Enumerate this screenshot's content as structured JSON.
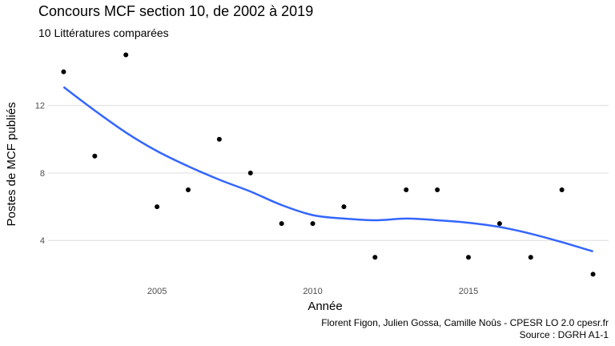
{
  "chart_data": {
    "type": "scatter",
    "title": "Concours MCF section 10, de 2002 à 2019",
    "subtitle": "10 Littératures comparées",
    "xlabel": "Année",
    "ylabel": "Postes de MCF publiés",
    "x_ticks": [
      2005,
      2010,
      2015
    ],
    "y_ticks": [
      4,
      8,
      12
    ],
    "xlim": [
      2001.5,
      2019.5
    ],
    "ylim": [
      1.4,
      15.5
    ],
    "grid": "horizontal major",
    "legend": "none",
    "series": [
      {
        "type": "scatter",
        "color": "#000000",
        "x": [
          2002,
          2003,
          2004,
          2005,
          2006,
          2007,
          2008,
          2009,
          2010,
          2011,
          2012,
          2013,
          2014,
          2015,
          2016,
          2017,
          2018,
          2019
        ],
        "y": [
          14,
          9,
          15,
          6,
          7,
          10,
          8,
          5,
          5,
          6,
          3,
          7,
          7,
          3,
          5,
          3,
          7,
          2
        ]
      },
      {
        "type": "line",
        "smooth": true,
        "color": "#3366ff",
        "x": [
          2002,
          2003,
          2004,
          2005,
          2006,
          2007,
          2008,
          2009,
          2010,
          2011,
          2012,
          2013,
          2014,
          2015,
          2016,
          2017,
          2018,
          2019
        ],
        "y": [
          13.1,
          11.7,
          10.4,
          9.3,
          8.4,
          7.6,
          6.9,
          6.1,
          5.5,
          5.3,
          5.2,
          5.3,
          5.2,
          5.05,
          4.8,
          4.4,
          3.9,
          3.35
        ]
      }
    ],
    "caption": [
      "Florent Figon, Julien Gossa, Camille Noûs - CPESR LO 2.0 cpesr.fr",
      "Source : DGRH A1-1"
    ]
  }
}
